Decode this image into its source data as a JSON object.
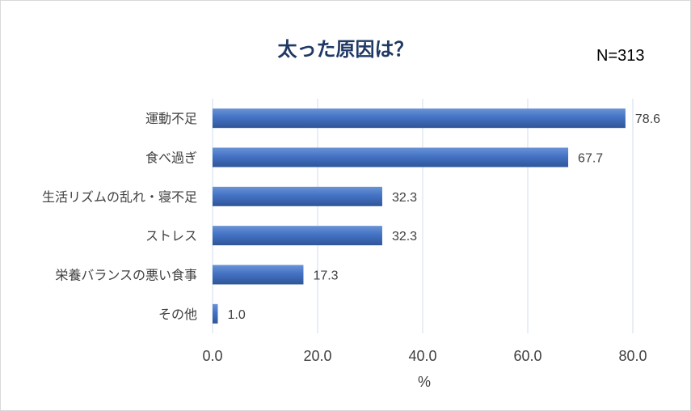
{
  "header": {
    "title": "太った原因は？",
    "sample_size": "N=313"
  },
  "colors": {
    "title": "#1f3864",
    "bar": "#4472c4",
    "gridline": "#d9e2f0",
    "text": "#404040"
  },
  "chart_data": {
    "type": "bar",
    "orientation": "horizontal",
    "title": "太った原因は？",
    "xlabel": "%",
    "ylabel": "",
    "xlim": [
      0,
      80
    ],
    "xticks": [
      "0.0",
      "20.0",
      "40.0",
      "60.0",
      "80.0"
    ],
    "grid": true,
    "categories": [
      "運動不足",
      "食べ過ぎ",
      "生活リズムの乱れ・寝不足",
      "ストレス",
      "栄養バランスの悪い食事",
      "その他"
    ],
    "values": [
      78.6,
      67.7,
      32.3,
      32.3,
      17.3,
      1.0
    ],
    "value_labels": [
      "78.6",
      "67.7",
      "32.3",
      "32.3",
      "17.3",
      "1.0"
    ]
  }
}
